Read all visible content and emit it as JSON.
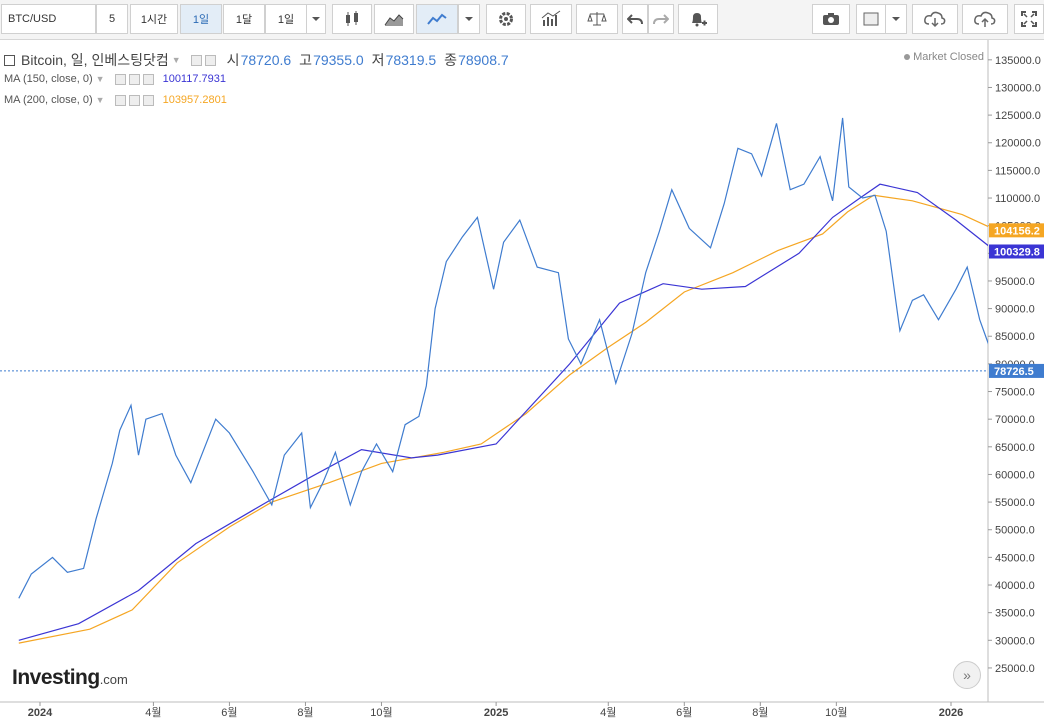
{
  "toolbar": {
    "symbol": "BTC/USD",
    "interval_number": "5",
    "interval_1h": "1시간",
    "interval_1d": "1일",
    "interval_1mo": "1달",
    "range": "1일"
  },
  "legend": {
    "main_symbol": "Bitcoin, 일, 인베스팅닷컴",
    "open_label": "시",
    "open_value": "78720.6",
    "high_label": "고",
    "high_value": "79355.0",
    "low_label": "저",
    "low_value": "78319.5",
    "close_label": "종",
    "close_value": "78908.7",
    "ma150_label": "MA (150, close, 0)",
    "ma150_value": "100117.7931",
    "ma200_label": "MA (200, close, 0)",
    "ma200_value": "103957.2801"
  },
  "status": {
    "market": "Market Closed"
  },
  "logo": {
    "brand": "Investing",
    "suffix": ".com"
  },
  "price_tags": {
    "ma200": "104156.2",
    "ma150": "100329.8",
    "last": "78726.5"
  },
  "chart_data": {
    "type": "line",
    "ylim": [
      23000,
      137500
    ],
    "y_ticks": [
      "135000.0",
      "130000.0",
      "125000.0",
      "120000.0",
      "115000.0",
      "110000.0",
      "105000.0",
      "100000.0",
      "95000.0",
      "90000.0",
      "85000.0",
      "80000.0",
      "75000.0",
      "70000.0",
      "65000.0",
      "60000.0",
      "55000.0",
      "50000.0",
      "45000.0",
      "40000.0",
      "35000.0",
      "30000.0",
      "25000.0"
    ],
    "x_ticks": [
      "2024",
      "4월",
      "6월",
      "8월",
      "10월",
      "2025",
      "4월",
      "6월",
      "8월",
      "10월",
      "2026"
    ],
    "last_price": 78726.5,
    "colors": {
      "price": "#3f7ccf",
      "ma150": "#3b35d4",
      "ma200": "#f5a623",
      "last": "#3f7ccf"
    },
    "series": [
      {
        "name": "Bitcoin",
        "x": [
          "2023-12-15",
          "2023-12-25",
          "2024-01-11",
          "2024-01-23",
          "2024-02-05",
          "2024-02-15",
          "2024-02-28",
          "2024-03-05",
          "2024-03-14",
          "2024-03-20",
          "2024-03-26",
          "2024-04-08",
          "2024-04-19",
          "2024-05-01",
          "2024-05-21",
          "2024-06-01",
          "2024-06-20",
          "2024-07-05",
          "2024-07-15",
          "2024-07-29",
          "2024-08-05",
          "2024-08-15",
          "2024-08-25",
          "2024-09-06",
          "2024-09-15",
          "2024-09-27",
          "2024-10-10",
          "2024-10-20",
          "2024-10-31",
          "2024-11-06",
          "2024-11-13",
          "2024-11-22",
          "2024-12-05",
          "2024-12-17",
          "2024-12-30",
          "2025-01-07",
          "2025-01-20",
          "2025-02-03",
          "2025-02-20",
          "2025-02-28",
          "2025-03-10",
          "2025-03-25",
          "2025-04-07",
          "2025-04-20",
          "2025-05-01",
          "2025-05-12",
          "2025-05-22",
          "2025-06-05",
          "2025-06-22",
          "2025-07-03",
          "2025-07-14",
          "2025-07-25",
          "2025-08-02",
          "2025-08-14",
          "2025-08-25",
          "2025-09-05",
          "2025-09-18",
          "2025-09-28",
          "2025-10-06",
          "2025-10-11",
          "2025-10-22",
          "2025-11-01",
          "2025-11-10",
          "2025-11-21",
          "2025-12-01",
          "2025-12-10",
          "2025-12-22",
          "2026-01-05",
          "2026-01-14",
          "2026-01-24",
          "2026-02-01",
          "2026-02-06"
        ],
        "y": [
          37600,
          42000,
          45000,
          42300,
          43000,
          52000,
          62000,
          68000,
          72500,
          63500,
          70000,
          71000,
          63500,
          58500,
          70000,
          67500,
          60500,
          54500,
          63500,
          67500,
          54000,
          58500,
          64000,
          54500,
          60500,
          65500,
          60500,
          69000,
          70500,
          76000,
          90000,
          98500,
          103000,
          106500,
          93500,
          102000,
          106000,
          97500,
          96500,
          84500,
          80000,
          88000,
          76500,
          85500,
          96500,
          104000,
          111500,
          104500,
          101000,
          109000,
          119000,
          118000,
          114000,
          123500,
          111500,
          112500,
          117500,
          109500,
          124500,
          112000,
          110000,
          110500,
          104000,
          86000,
          91500,
          92500,
          88000,
          93500,
          97500,
          88000,
          83000,
          78700
        ]
      },
      {
        "name": "MA (150, close, 0)",
        "x": [
          "2023-12-15",
          "2024-02-01",
          "2024-03-20",
          "2024-05-05",
          "2024-07-01",
          "2024-08-05",
          "2024-09-15",
          "2024-10-25",
          "2024-11-15",
          "2025-01-01",
          "2025-03-01",
          "2025-04-10",
          "2025-05-15",
          "2025-06-15",
          "2025-07-20",
          "2025-09-01",
          "2025-09-28",
          "2025-10-20",
          "2025-11-05",
          "2025-12-05",
          "2026-01-05",
          "2026-02-06"
        ],
        "y": [
          30000,
          33000,
          39000,
          47500,
          55000,
          59500,
          64500,
          63000,
          63500,
          65500,
          80000,
          91000,
          94500,
          93500,
          94000,
          100000,
          106500,
          110000,
          112500,
          111000,
          106000,
          100300
        ]
      },
      {
        "name": "MA (200, close, 0)",
        "x": [
          "2023-12-15",
          "2024-02-10",
          "2024-03-15",
          "2024-04-20",
          "2024-06-01",
          "2024-07-05",
          "2024-08-20",
          "2024-10-01",
          "2024-11-20",
          "2024-12-20",
          "2025-01-25",
          "2025-03-01",
          "2025-04-01",
          "2025-05-01",
          "2025-06-01",
          "2025-07-10",
          "2025-08-15",
          "2025-09-20",
          "2025-10-10",
          "2025-10-31",
          "2025-12-01",
          "2026-01-10",
          "2026-02-06"
        ],
        "y": [
          29500,
          32000,
          35500,
          44000,
          50500,
          55000,
          58500,
          62000,
          64000,
          65500,
          71000,
          78000,
          83000,
          87500,
          93000,
          96500,
          100500,
          103500,
          107500,
          110500,
          109500,
          107000,
          104200
        ]
      }
    ]
  }
}
